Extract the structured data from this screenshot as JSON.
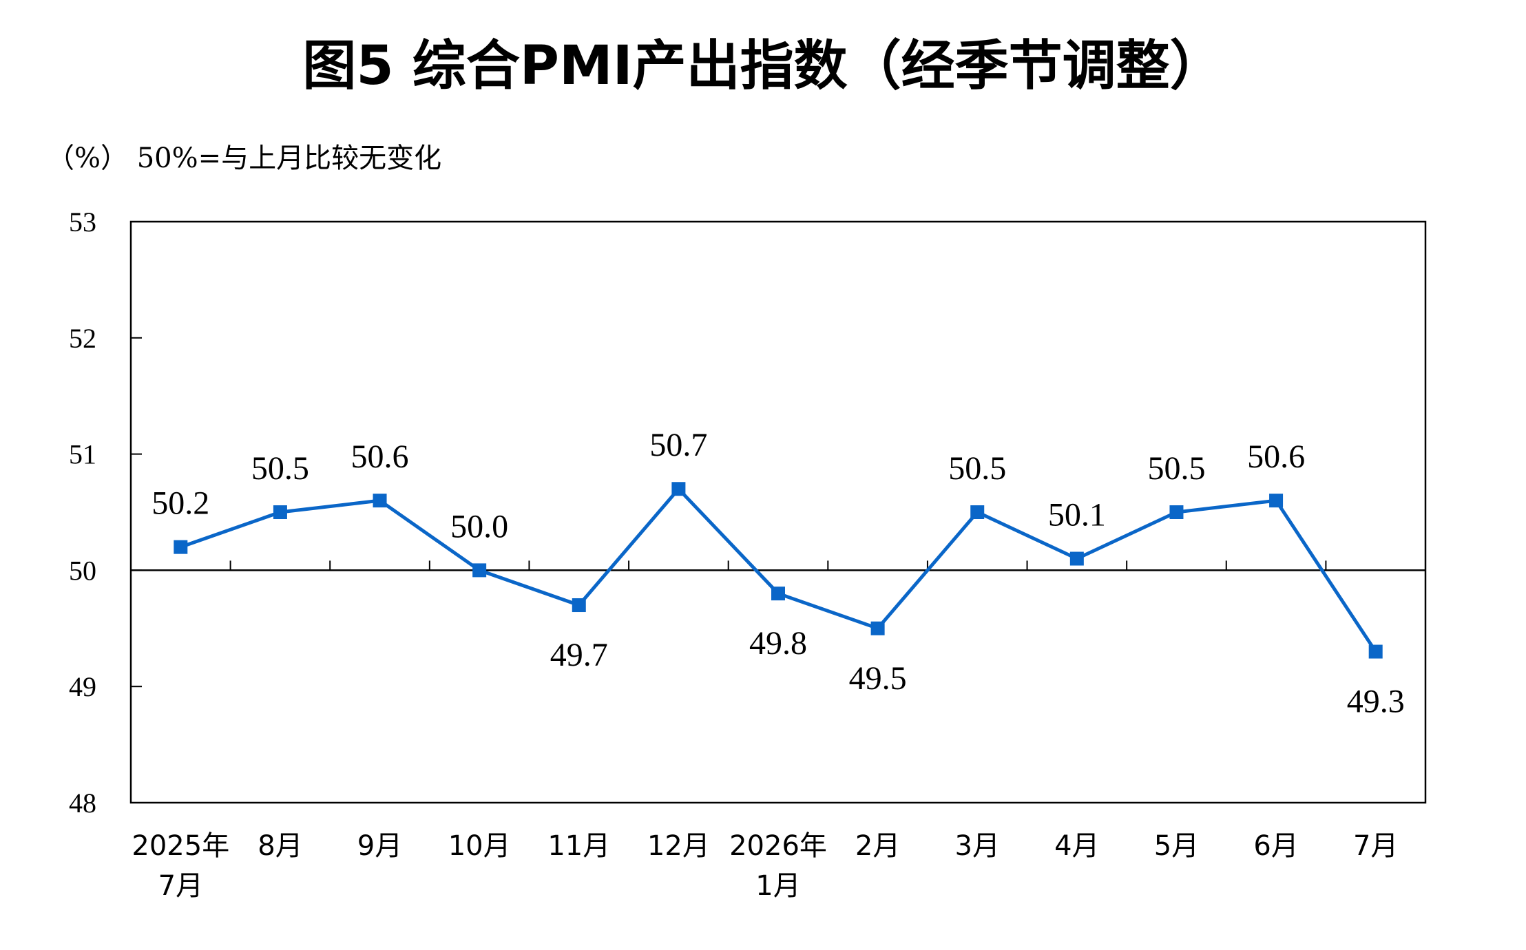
{
  "chart_data": {
    "type": "line",
    "title": "图5  综合PMI产出指数（经季节调整）",
    "unit_note": "（%）  50%=与上月比较无变化",
    "categories": [
      [
        "2025年",
        "7月"
      ],
      [
        "8月"
      ],
      [
        "9月"
      ],
      [
        "10月"
      ],
      [
        "11月"
      ],
      [
        "12月"
      ],
      [
        "2026年",
        "1月"
      ],
      [
        "2月"
      ],
      [
        "3月"
      ],
      [
        "4月"
      ],
      [
        "5月"
      ],
      [
        "6月"
      ],
      [
        "7月"
      ]
    ],
    "series": [
      {
        "values": [
          50.2,
          50.5,
          50.6,
          50.0,
          49.7,
          50.7,
          49.8,
          49.5,
          50.5,
          50.1,
          50.5,
          50.6,
          49.3
        ],
        "labels": [
          "50.2",
          "50.5",
          "50.6",
          "50.0",
          "49.7",
          "50.7",
          "49.8",
          "49.5",
          "50.5",
          "50.1",
          "50.5",
          "50.6",
          "49.3"
        ],
        "label_side": [
          "above",
          "above",
          "above",
          "above",
          "below",
          "above",
          "below",
          "below",
          "above",
          "above",
          "above",
          "above",
          "below"
        ],
        "color": "#0a66c8"
      }
    ],
    "ylim": [
      48,
      53
    ],
    "yticks": [
      "48",
      "49",
      "50",
      "51",
      "52",
      "53"
    ],
    "reference_line": 50,
    "grid": false,
    "legend": "none"
  }
}
